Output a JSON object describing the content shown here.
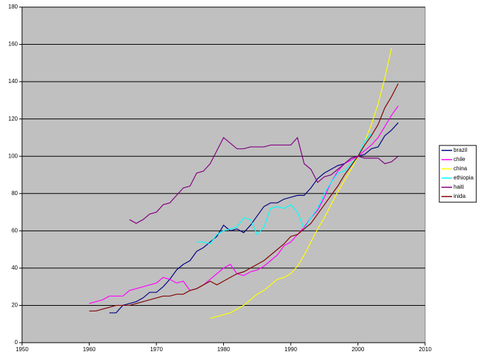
{
  "chart_data": {
    "type": "line",
    "x": [
      1960,
      1961,
      1962,
      1963,
      1964,
      1965,
      1966,
      1967,
      1968,
      1969,
      1970,
      1971,
      1972,
      1973,
      1974,
      1975,
      1976,
      1977,
      1978,
      1979,
      1980,
      1981,
      1982,
      1983,
      1984,
      1985,
      1986,
      1987,
      1988,
      1989,
      1990,
      1991,
      1992,
      1993,
      1994,
      1995,
      1996,
      1997,
      1998,
      1999,
      2000,
      2001,
      2002,
      2003,
      2004,
      2005,
      2006
    ],
    "series": [
      {
        "name": "brazil",
        "color": "#000080",
        "values": [
          null,
          null,
          null,
          16,
          16,
          20,
          21,
          22,
          24,
          27,
          27,
          30,
          34,
          39,
          42,
          44,
          49,
          51,
          54,
          57,
          63,
          60,
          61,
          59,
          63,
          68,
          73,
          75,
          75,
          77,
          78,
          79,
          79,
          83,
          88,
          91,
          93,
          95,
          96,
          99,
          100,
          101,
          104,
          105,
          111,
          114,
          118
        ]
      },
      {
        "name": "chile",
        "color": "#ff00ff",
        "values": [
          21,
          22,
          23,
          25,
          25,
          25,
          28,
          29,
          30,
          31,
          32,
          35,
          34,
          32,
          33,
          28,
          29,
          31,
          34,
          37,
          40,
          42,
          37,
          36,
          38,
          39,
          41,
          44,
          47,
          52,
          54,
          58,
          62,
          67,
          71,
          78,
          86,
          92,
          96,
          98,
          100,
          103,
          106,
          110,
          116,
          122,
          127
        ]
      },
      {
        "name": "china",
        "color": "#ffff00",
        "values": [
          null,
          null,
          null,
          null,
          null,
          null,
          null,
          null,
          null,
          null,
          null,
          null,
          null,
          null,
          null,
          null,
          null,
          null,
          13,
          14,
          15,
          16,
          18,
          20,
          23,
          26,
          28,
          31,
          34,
          35,
          37,
          41,
          47,
          54,
          61,
          67,
          74,
          81,
          87,
          93,
          100,
          108,
          117,
          128,
          142,
          158,
          null
        ]
      },
      {
        "name": "ethiopia",
        "color": "#00ffff",
        "values": [
          null,
          null,
          null,
          null,
          null,
          null,
          null,
          null,
          null,
          null,
          null,
          null,
          null,
          null,
          null,
          null,
          54,
          54,
          53,
          58,
          60,
          61,
          62,
          67,
          66,
          58,
          62,
          72,
          73,
          72,
          74,
          70,
          61,
          67,
          72,
          80,
          86,
          91,
          92,
          96,
          100,
          108,
          112,
          null,
          null,
          null,
          null
        ]
      },
      {
        "name": "haiti",
        "color": "#800080",
        "values": [
          null,
          null,
          null,
          null,
          null,
          null,
          66,
          64,
          66,
          69,
          70,
          74,
          75,
          79,
          83,
          84,
          91,
          92,
          96,
          103,
          110,
          107,
          104,
          104,
          105,
          105,
          105,
          106,
          106,
          106,
          106,
          110,
          96,
          93,
          86,
          89,
          90,
          93,
          96,
          99,
          100,
          99,
          99,
          99,
          96,
          97,
          100
        ]
      },
      {
        "name": "inida",
        "color": "#800000",
        "values": [
          17,
          17,
          18,
          19,
          20,
          20,
          20,
          21,
          22,
          23,
          24,
          25,
          25,
          26,
          26,
          28,
          29,
          31,
          33,
          31,
          33,
          35,
          37,
          38,
          40,
          42,
          44,
          47,
          50,
          53,
          57,
          58,
          61,
          64,
          69,
          74,
          79,
          84,
          90,
          95,
          100,
          106,
          111,
          117,
          126,
          132,
          139
        ]
      }
    ],
    "xlim": [
      1950,
      2010
    ],
    "xticks": [
      1950,
      1960,
      1970,
      1980,
      1990,
      2000,
      2010
    ],
    "ylim": [
      0,
      180
    ],
    "yticks": [
      0,
      20,
      40,
      60,
      80,
      100,
      120,
      140,
      160,
      180
    ],
    "grid": true,
    "legend": "right",
    "background": "#c0c0c0"
  }
}
